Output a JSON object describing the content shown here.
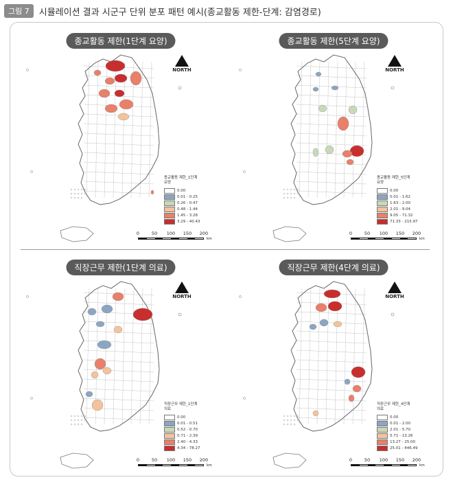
{
  "header": {
    "badge": "그림 7",
    "title": "시뮬레이션 결과 시군구 단위 분포 패턴 예시(종교활동 제한-단계: 감염경로)"
  },
  "colors": {
    "white": "#ffffff",
    "blue": "#8ca5c2",
    "green": "#c9d8b9",
    "peach": "#f2c39c",
    "salmon": "#e8806a",
    "red": "#c82e2e"
  },
  "north_label": "NORTH",
  "scale": {
    "labels": [
      "0",
      "50",
      "100",
      "150",
      "200"
    ],
    "unit": "km"
  },
  "panels": [
    {
      "title": "종교활동 제한(1단계 요양)",
      "legend_title": "종교활동 제한_1단계\n요양",
      "legend": [
        {
          "label": "0.00",
          "color": "#ffffff"
        },
        {
          "label": "0.01 - 0.25",
          "color": "#8ca5c2"
        },
        {
          "label": "0.26 - 0.47",
          "color": "#c9d8b9"
        },
        {
          "label": "0.48 - 1.44",
          "color": "#f2c39c"
        },
        {
          "label": "1.45 - 3.28",
          "color": "#e8806a"
        },
        {
          "label": "3.29 - 40.43",
          "color": "#c82e2e"
        }
      ]
    },
    {
      "title": "종교활동 제한(5단계 요양)",
      "legend_title": "종교활동 제한_5단계\n요양",
      "legend": [
        {
          "label": "0.00",
          "color": "#ffffff"
        },
        {
          "label": "0.01 - 1.62",
          "color": "#8ca5c2"
        },
        {
          "label": "1.63 - 2.00",
          "color": "#c9d8b9"
        },
        {
          "label": "2.01 - 9.04",
          "color": "#f2c39c"
        },
        {
          "label": "9.05 - 71.32",
          "color": "#e8806a"
        },
        {
          "label": "71.33 - 215.97",
          "color": "#c82e2e"
        }
      ]
    },
    {
      "title": "직장근무 제한(1단계 의료)",
      "legend_title": "직장근무 제한_1단계\n의료",
      "legend": [
        {
          "label": "0.00",
          "color": "#ffffff"
        },
        {
          "label": "0.01 - 0.51",
          "color": "#8ca5c2"
        },
        {
          "label": "0.52 - 0.70",
          "color": "#c9d8b9"
        },
        {
          "label": "0.71 - 2.39",
          "color": "#f2c39c"
        },
        {
          "label": "2.40 - 4.33",
          "color": "#e8806a"
        },
        {
          "label": "4.34 - 78.27",
          "color": "#c82e2e"
        }
      ]
    },
    {
      "title": "직장근무 제한(4단계 의료)",
      "legend_title": "직장근무 제한_4단계\n의료",
      "legend": [
        {
          "label": "0.00",
          "color": "#ffffff"
        },
        {
          "label": "0.01 - 2.00",
          "color": "#8ca5c2"
        },
        {
          "label": "2.01 - 5.70",
          "color": "#c9d8b9"
        },
        {
          "label": "5.71 - 13.26",
          "color": "#f2c39c"
        },
        {
          "label": "13.27 - 25.00",
          "color": "#e8806a"
        },
        {
          "label": "25.01 - 446.49",
          "color": "#c82e2e"
        }
      ]
    }
  ]
}
